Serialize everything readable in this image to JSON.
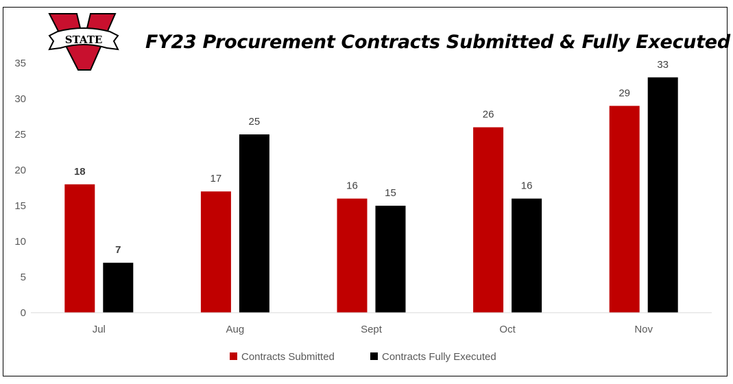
{
  "chart_data": {
    "type": "bar",
    "title": "FY23 Procurement Contracts Submitted & Fully Executed",
    "categories": [
      "Jul",
      "Aug",
      "Sept",
      "Oct",
      "Nov"
    ],
    "series": [
      {
        "name": "Contracts Submitted",
        "values": [
          18,
          17,
          16,
          26,
          29
        ],
        "color": "#C00000"
      },
      {
        "name": "Contracts Fully Executed",
        "values": [
          7,
          25,
          15,
          16,
          33
        ],
        "color": "#000000"
      }
    ],
    "ylim": [
      0,
      35
    ],
    "yticks": [
      0,
      5,
      10,
      15,
      20,
      25,
      30,
      35
    ],
    "grid": false,
    "legend": "bottom",
    "data_labels": true
  },
  "logo": {
    "text": "STATE",
    "letter": "V",
    "colors": {
      "primary": "#C8102E",
      "outline": "#000000"
    }
  }
}
